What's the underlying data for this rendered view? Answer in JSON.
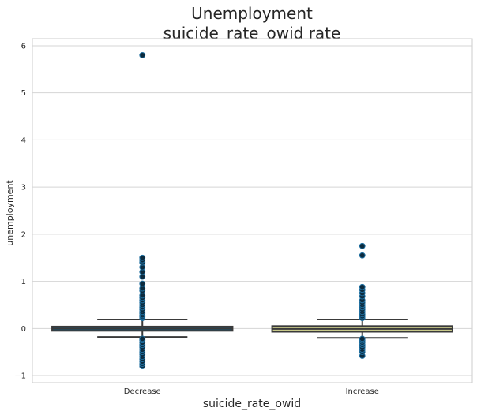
{
  "chart_data": {
    "type": "box",
    "title_lines": [
      "Unemployment",
      "suicide_rate_owid rate"
    ],
    "xlabel": "suicide_rate_owid",
    "ylabel": "unemployment",
    "ylim": [
      -1.15,
      6.15
    ],
    "yticks": [
      -1,
      0,
      1,
      2,
      3,
      4,
      5,
      6
    ],
    "grid": true,
    "categories": [
      "Decrease",
      "Increase"
    ],
    "boxes": [
      {
        "category": "Decrease",
        "box_color": "#1f4e66",
        "median_color": "#3a3a3a",
        "q1": -0.05,
        "median": 0.0,
        "q3": 0.04,
        "whisker_low": -0.18,
        "whisker_high": 0.19,
        "outliers": [
          -0.8,
          -0.75,
          -0.7,
          -0.65,
          -0.6,
          -0.55,
          -0.5,
          -0.45,
          -0.4,
          -0.35,
          -0.3,
          -0.25,
          -0.22,
          0.22,
          0.25,
          0.28,
          0.32,
          0.35,
          0.4,
          0.45,
          0.5,
          0.55,
          0.6,
          0.65,
          0.7,
          0.8,
          0.85,
          0.95,
          1.1,
          1.2,
          1.3,
          1.4,
          1.45,
          1.5,
          5.8
        ]
      },
      {
        "category": "Increase",
        "box_color": "#c8c98a",
        "median_color": "#3a3a3a",
        "q1": -0.07,
        "median": -0.01,
        "q3": 0.05,
        "whisker_low": -0.2,
        "whisker_high": 0.19,
        "outliers": [
          -0.58,
          -0.5,
          -0.45,
          -0.4,
          -0.35,
          -0.3,
          -0.26,
          -0.22,
          0.22,
          0.26,
          0.3,
          0.35,
          0.4,
          0.45,
          0.5,
          0.55,
          0.6,
          0.68,
          0.75,
          0.82,
          0.88,
          1.55,
          1.75
        ]
      }
    ],
    "outlier_color": "#0d2b3e",
    "outlier_edge": "#1f6fa0"
  }
}
